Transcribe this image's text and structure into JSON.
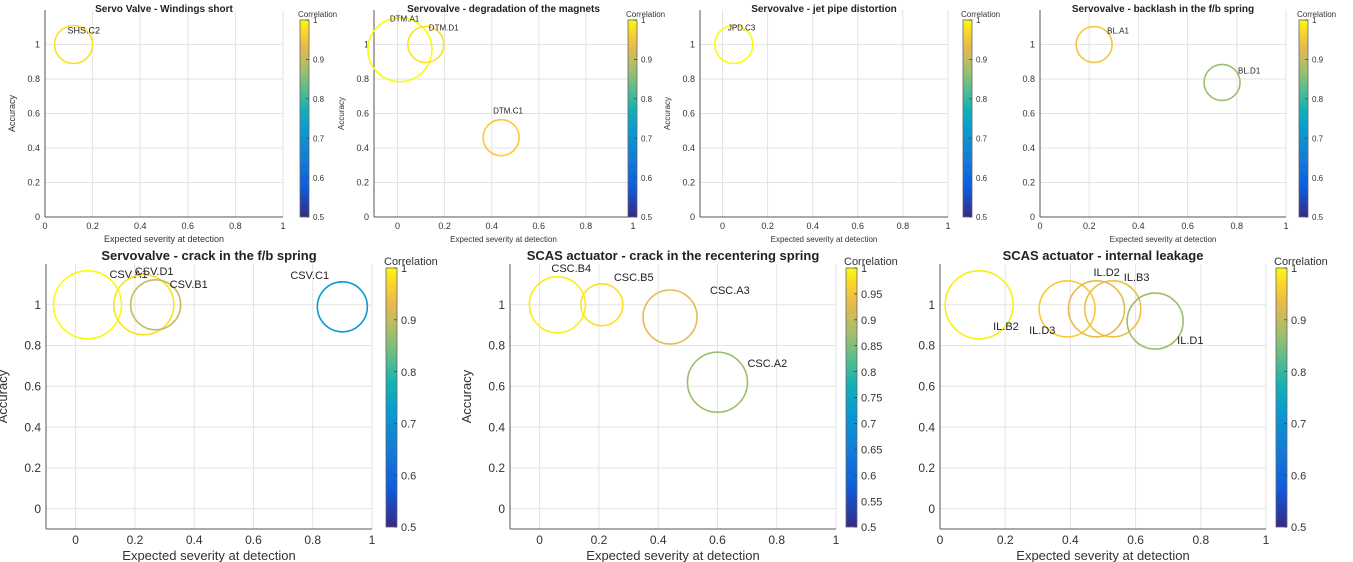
{
  "chart_data": [
    {
      "type": "scatter",
      "title": "Servo Valve - Windings short",
      "xlabel": "Expected severity at detection",
      "ylabel": "Accuracy",
      "xlim": [
        0,
        1
      ],
      "ylim": [
        0,
        1.2
      ],
      "xticks": [
        "0",
        "0.2",
        "0.4",
        "0.6",
        "0.8",
        "1"
      ],
      "yticks": [
        "0",
        "0.2",
        "0.4",
        "0.6",
        "0.8",
        "1"
      ],
      "grid": true,
      "colorbar": {
        "label": "Correlation",
        "range": [
          0.5,
          1
        ],
        "ticks": [
          "0.5",
          "0.6",
          "0.7",
          "0.8",
          "0.9",
          "1"
        ]
      },
      "points": [
        {
          "label": "SHS.C2",
          "x": 0.12,
          "y": 1.0,
          "correlation": 0.98
        }
      ]
    },
    {
      "type": "scatter",
      "title": "Servovalve - degradation of the magnets",
      "xlabel": "Expected severity at detection",
      "ylabel": "Accuracy",
      "xlim": [
        -0.1,
        1
      ],
      "ylim": [
        0,
        1.2
      ],
      "xticks": [
        "0",
        "0.2",
        "0.4",
        "0.6",
        "0.8",
        "1"
      ],
      "yticks": [
        "0",
        "0.2",
        "0.4",
        "0.6",
        "0.8",
        "1"
      ],
      "grid": true,
      "colorbar": {
        "label": "Correlation",
        "range": [
          0.5,
          1
        ],
        "ticks": [
          "0.5",
          "0.6",
          "0.7",
          "0.8",
          "0.9",
          "1"
        ]
      },
      "points": [
        {
          "label": "DTM.A1",
          "x": 0.01,
          "y": 0.97,
          "correlation": 1.0
        },
        {
          "label": "DTM.D1",
          "x": 0.12,
          "y": 1.0,
          "correlation": 0.98
        },
        {
          "label": "DTM.C1",
          "x": 0.44,
          "y": 0.46,
          "correlation": 0.96
        }
      ]
    },
    {
      "type": "scatter",
      "title": "Servovalve - jet pipe distortion",
      "xlabel": "Expected severity at detection",
      "ylabel": "Accuracy",
      "xlim": [
        -0.1,
        1
      ],
      "ylim": [
        0,
        1.2
      ],
      "xticks": [
        "0",
        "0.2",
        "0.4",
        "0.6",
        "0.8",
        "1"
      ],
      "yticks": [
        "0",
        "0.2",
        "0.4",
        "0.6",
        "0.8",
        "1"
      ],
      "grid": true,
      "colorbar": {
        "label": "Correlation",
        "range": [
          0.5,
          1
        ],
        "ticks": [
          "0.5",
          "0.6",
          "0.7",
          "0.8",
          "0.9",
          "1"
        ]
      },
      "points": [
        {
          "label": "JPD.C3",
          "x": 0.05,
          "y": 1.0,
          "correlation": 1.0
        }
      ]
    },
    {
      "type": "scatter",
      "title": "Servovalve - backlash in the f/b spring",
      "xlabel": "Expected severity at detection",
      "ylabel": "",
      "xlim": [
        0,
        1
      ],
      "ylim": [
        0,
        1.2
      ],
      "xticks": [
        "0",
        "0.2",
        "0.4",
        "0.6",
        "0.8",
        "1"
      ],
      "yticks": [
        "0",
        "0.2",
        "0.4",
        "0.6",
        "0.8",
        "1"
      ],
      "grid": true,
      "colorbar": {
        "label": "Correlation",
        "range": [
          0.5,
          1
        ],
        "ticks": [
          "0.5",
          "0.6",
          "0.7",
          "0.8",
          "0.9",
          "1"
        ]
      },
      "points": [
        {
          "label": "BL.A1",
          "x": 0.22,
          "y": 1.0,
          "correlation": 0.95
        },
        {
          "label": "BL.D1",
          "x": 0.74,
          "y": 0.78,
          "correlation": 0.87
        }
      ]
    },
    {
      "type": "scatter",
      "title": "Servovalve - crack in the f/b spring",
      "xlabel": "Expected severity at detection",
      "ylabel": "Accuracy",
      "xlim": [
        -0.1,
        1
      ],
      "ylim": [
        -0.1,
        1.2
      ],
      "xticks": [
        "0",
        "0.2",
        "0.4",
        "0.6",
        "0.8",
        "1"
      ],
      "yticks": [
        "0",
        "0.2",
        "0.4",
        "0.6",
        "0.8",
        "1"
      ],
      "grid": true,
      "colorbar": {
        "label": "Correlation",
        "range": [
          0.5,
          1
        ],
        "ticks": [
          "0.5",
          "0.6",
          "0.7",
          "0.8",
          "0.9",
          "1"
        ]
      },
      "points": [
        {
          "label": "CSV.A1",
          "x": 0.04,
          "y": 1.0,
          "correlation": 1.0
        },
        {
          "label": "CSV.D1",
          "x": 0.23,
          "y": 1.0,
          "correlation": 0.98
        },
        {
          "label": "CSV.B1",
          "x": 0.27,
          "y": 1.0,
          "correlation": 0.9
        },
        {
          "label": "CSV.C1",
          "x": 0.9,
          "y": 0.99,
          "correlation": 0.72
        }
      ]
    },
    {
      "type": "scatter",
      "title": "SCAS actuator - crack in the recentering spring",
      "xlabel": "Expected severity at detection",
      "ylabel": "Accuracy",
      "xlim": [
        -0.1,
        1
      ],
      "ylim": [
        -0.1,
        1.2
      ],
      "xticks": [
        "0",
        "0.2",
        "0.4",
        "0.6",
        "0.8",
        "1"
      ],
      "yticks": [
        "0",
        "0.2",
        "0.4",
        "0.6",
        "0.8",
        "1"
      ],
      "grid": true,
      "colorbar": {
        "label": "Correlation",
        "range": [
          0.5,
          1
        ],
        "ticks": [
          "0.5",
          "0.55",
          "0.6",
          "0.65",
          "0.7",
          "0.75",
          "0.8",
          "0.85",
          "0.9",
          "0.95",
          "1"
        ]
      },
      "points": [
        {
          "label": "CSC.B4",
          "x": 0.06,
          "y": 1.0,
          "correlation": 0.99
        },
        {
          "label": "CSC.B5",
          "x": 0.21,
          "y": 1.0,
          "correlation": 0.98
        },
        {
          "label": "CSC.A3",
          "x": 0.44,
          "y": 0.94,
          "correlation": 0.93
        },
        {
          "label": "CSC.A2",
          "x": 0.6,
          "y": 0.62,
          "correlation": 0.87
        }
      ]
    },
    {
      "type": "scatter",
      "title": "SCAS actuator - internal leakage",
      "xlabel": "Expected severity at detection",
      "ylabel": "",
      "xlim": [
        0,
        1
      ],
      "ylim": [
        -0.1,
        1.2
      ],
      "xticks": [
        "0",
        "0.2",
        "0.4",
        "0.6",
        "0.8",
        "1"
      ],
      "yticks": [
        "0",
        "0.2",
        "0.4",
        "0.6",
        "0.8",
        "1"
      ],
      "grid": true,
      "colorbar": {
        "label": "Correlation",
        "range": [
          0.5,
          1
        ],
        "ticks": [
          "0.5",
          "0.6",
          "0.7",
          "0.8",
          "0.9",
          "1"
        ]
      },
      "points": [
        {
          "label": "IL.B2",
          "x": 0.12,
          "y": 1.0,
          "correlation": 0.99
        },
        {
          "label": "IL.D3",
          "x": 0.39,
          "y": 0.98,
          "correlation": 0.96
        },
        {
          "label": "IL.D2",
          "x": 0.48,
          "y": 0.98,
          "correlation": 0.93
        },
        {
          "label": "IL.B3",
          "x": 0.53,
          "y": 0.98,
          "correlation": 0.94
        },
        {
          "label": "IL.D1",
          "x": 0.66,
          "y": 0.92,
          "correlation": 0.87
        }
      ]
    }
  ]
}
